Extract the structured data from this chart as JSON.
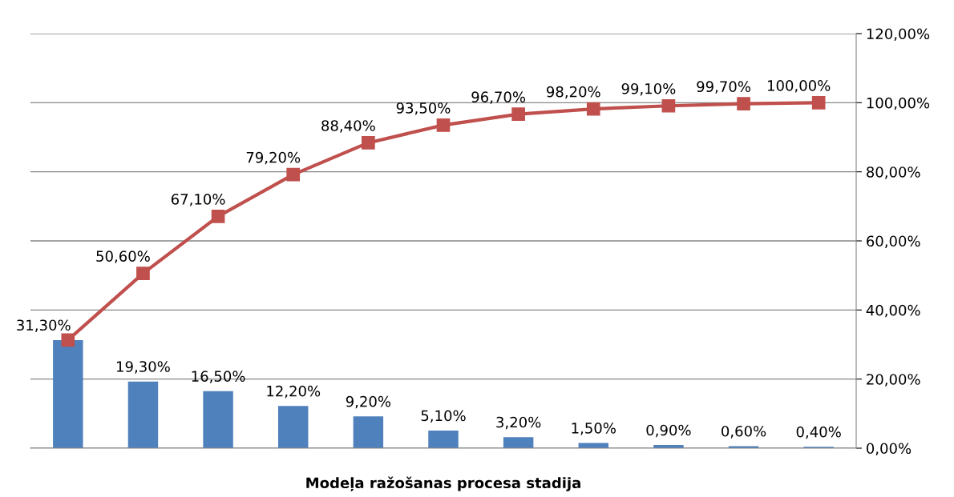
{
  "chart_data": {
    "type": "bar",
    "xlabel": "Modeļa ražošanas procesa stadija",
    "categories": [
      null,
      null,
      null,
      null,
      null,
      null,
      null,
      null,
      null,
      null,
      null
    ],
    "series": [
      {
        "color": "#4f81bd",
        "values": [
          31.3,
          19.3,
          16.5,
          12.2,
          9.2,
          5.1,
          3.2,
          1.5,
          0.9,
          0.6,
          0.4
        ],
        "value_labels": [
          null,
          "19,30%",
          "16,50%",
          "12,20%",
          "9,20%",
          "5,10%",
          "3,20%",
          "1,50%",
          "0,90%",
          "0,60%",
          "0,40%"
        ]
      },
      {
        "type": "line",
        "color": "#c0504d",
        "marker": "square",
        "values": [
          31.3,
          50.6,
          67.1,
          79.2,
          88.4,
          93.5,
          96.7,
          98.2,
          99.1,
          99.7,
          100.0
        ],
        "value_labels": [
          "31,30%",
          "50,60%",
          "67,10%",
          "79,20%",
          "88,40%",
          "93,50%",
          "96,70%",
          "98,20%",
          "99,10%",
          "99,70%",
          "100,00%"
        ]
      }
    ],
    "ylim": [
      0,
      120
    ],
    "yticks": [
      {
        "value": 0,
        "label": "0,00%"
      },
      {
        "value": 20,
        "label": "20,00%"
      },
      {
        "value": 40,
        "label": "40,00%"
      },
      {
        "value": 60,
        "label": "60,00%"
      },
      {
        "value": 80,
        "label": "80,00%"
      },
      {
        "value": 100,
        "label": "100,00%"
      },
      {
        "value": 120,
        "label": "120,00%"
      }
    ],
    "grid": "y"
  }
}
